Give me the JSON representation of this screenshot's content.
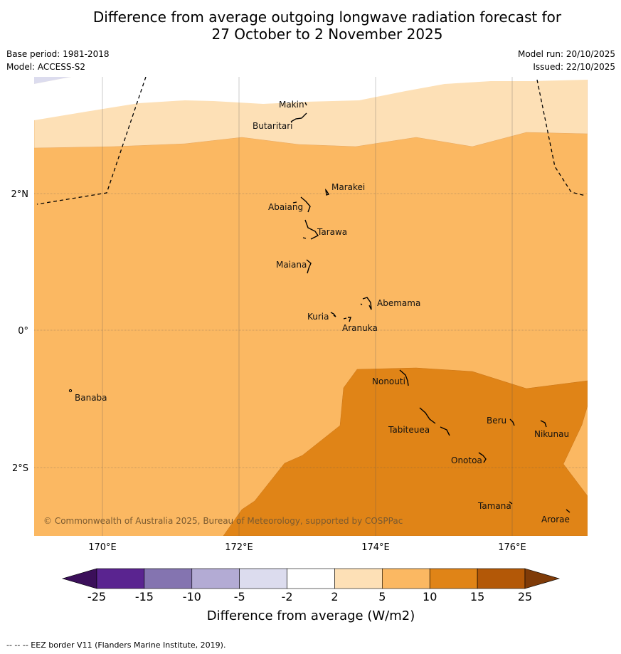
{
  "title_line1": "Difference from average outgoing longwave radiation forecast for",
  "title_line2": "27 October to 2 November 2025",
  "base_period": "Base period: 1981-2018",
  "model": "Model: ACCESS-S2",
  "model_run": "Model run: 20/10/2025",
  "issued": "Issued: 22/10/2025",
  "x_ticks": [
    "170°E",
    "172°E",
    "174°E",
    "176°E"
  ],
  "y_ticks": [
    "2°N",
    "0°",
    "2°S"
  ],
  "places": {
    "makin": "Makin",
    "butaritari": "Butaritari",
    "marakei": "Marakei",
    "abaiang": "Abaiang",
    "tarawa": "Tarawa",
    "maiana": "Maiana",
    "abemama": "Abemama",
    "kuria": "Kuria",
    "aranuka": "Aranuka",
    "nonouti": "Nonouti",
    "banaba": "Banaba",
    "beru": "Beru",
    "tabiteuea": "Tabiteuea",
    "nikunau": "Nikunau",
    "onotoa": "Onotoa",
    "tamana": "Tamana",
    "arorae": "Arorae"
  },
  "copyright": "© Commonwealth of Australia 2025, Bureau of Meteorology, supported by COSPPac",
  "legend": {
    "title": "Difference from average (W/m2)",
    "ticks": [
      "-25",
      "-15",
      "-10",
      "-5",
      "-2",
      "2",
      "5",
      "10",
      "15",
      "25"
    ],
    "colors": [
      "#3b0f5a",
      "#5a2490",
      "#8474b0",
      "#b3abd4",
      "#dcdcee",
      "#ffffff",
      "#fde0b6",
      "#fbb862",
      "#e08417",
      "#b35807",
      "#7f3b08"
    ]
  },
  "colors": {
    "band_2_5": "#fde0b6",
    "band_5_10": "#fbb862",
    "band_10_15": "#e08417",
    "band_neg2_neg5": "#dcdcee"
  },
  "footnote": "--  --  -- EEZ border V11 (Flanders Marine Institute, 2019)."
}
